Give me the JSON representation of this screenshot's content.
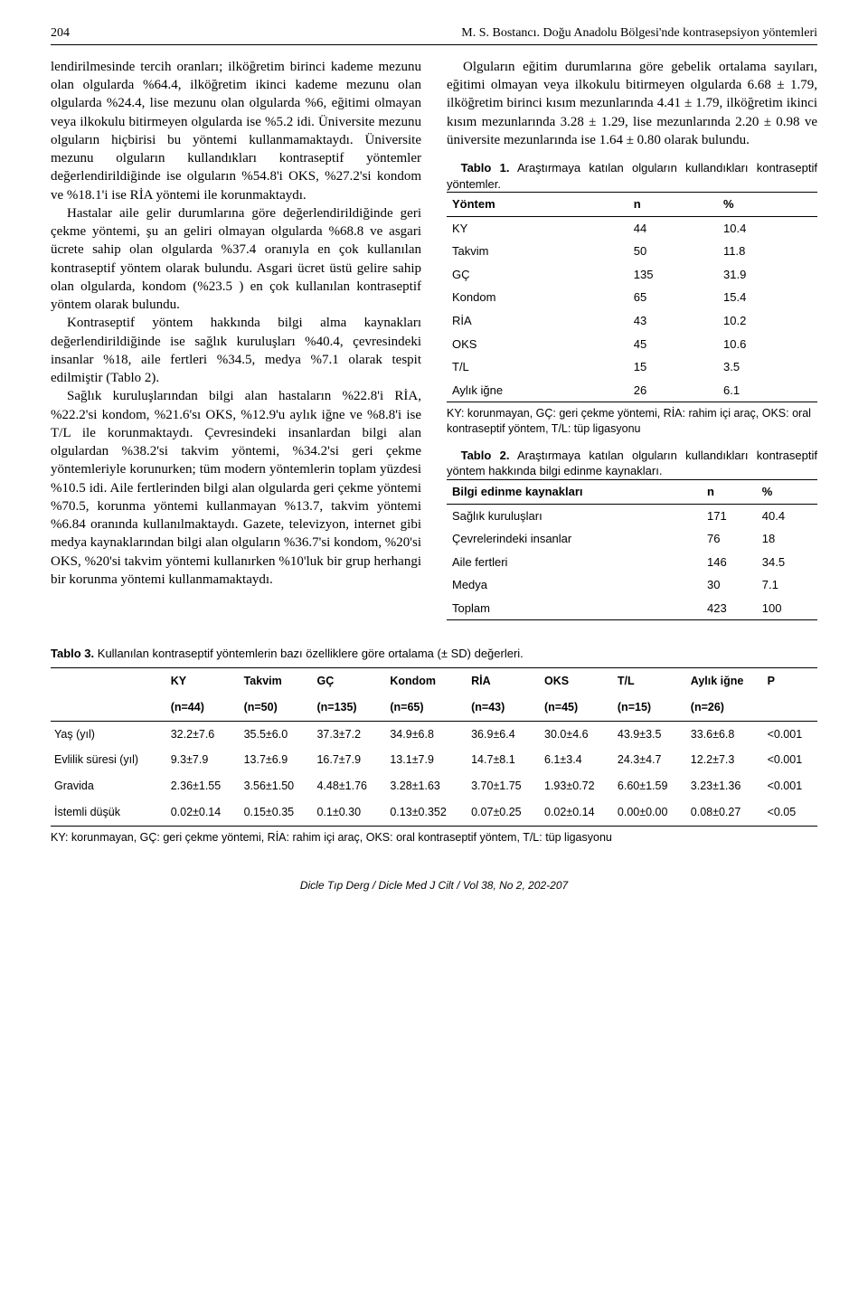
{
  "header": {
    "page_no": "204",
    "running": "M. S. Bostancı. Doğu Anadolu Bölgesi'nde kontrasepsiyon yöntemleri"
  },
  "left": {
    "p1": "lendirilmesinde tercih oranları; ilköğretim birinci kademe mezunu olan olgularda %64.4, ilköğretim ikinci kademe mezunu olan olgularda %24.4, lise mezunu olan olgularda %6, eğitimi olmayan veya ilkokulu bitirmeyen olgularda ise %5.2 idi. Üniversite mezunu olguların hiçbirisi bu yöntemi kullanmamaktaydı. Üniversite mezunu olguların kullandıkları kontraseptif yöntemler değerlendirildiğinde ise olguların %54.8'i OKS, %27.2'si kondom ve %18.1'i ise RİA yöntemi ile korunmaktaydı.",
    "p2": "Hastalar aile gelir durumlarına göre değerlendirildiğinde geri çekme yöntemi, şu an geliri olmayan olgularda %68.8 ve asgari ücrete sahip olan olgularda %37.4 oranıyla en çok kullanılan kontraseptif yöntem olarak bulundu. Asgari ücret üstü gelire sahip olan olgularda, kondom (%23.5 ) en çok kullanılan kontraseptif yöntem olarak bulundu.",
    "p3": "Kontraseptif yöntem hakkında bilgi alma kaynakları değerlendirildiğinde ise sağlık kuruluşları %40.4, çevresindeki insanlar %18, aile fertleri %34.5, medya %7.1 olarak tespit edilmiştir (Tablo 2).",
    "p4": "Sağlık kuruluşlarından bilgi alan hastaların %22.8'i RİA, %22.2'si kondom, %21.6'sı OKS, %12.9'u aylık iğne ve %8.8'i ise T/L ile korunmaktaydı. Çevresindeki insanlardan bilgi alan olgulardan %38.2'si takvim yöntemi, %34.2'si geri çekme yöntemleriyle korunurken; tüm modern yöntemlerin toplam yüzdesi %10.5 idi. Aile fertlerinden bilgi alan olgularda geri çekme yöntemi %70.5, korunma yöntemi kullanmayan %13.7, takvim yöntemi %6.84 oranında kullanılmaktaydı. Gazete, televizyon, internet gibi medya kaynaklarından bilgi alan olguların %36.7'si kondom, %20'si OKS, %20'si takvim yöntemi kullanırken %10'luk bir grup herhangi bir korunma yöntemi kullanmamaktaydı."
  },
  "right": {
    "p1": "Olguların eğitim durumlarına göre gebelik ortalama sayıları, eğitimi olmayan veya ilkokulu bitirmeyen olgularda 6.68 ± 1.79, ilköğretim birinci kısım mezunlarında 4.41 ± 1.79, ilköğretim ikinci kısım mezunlarında 3.28 ± 1.29, lise mezunlarında 2.20 ± 0.98 ve üniversite mezunlarında ise 1.64 ± 0.80 olarak bulundu."
  },
  "table1": {
    "caption_bold": "Tablo 1.",
    "caption_rest": " Araştırmaya katılan olguların kullandıkları kontraseptif yöntemler.",
    "headers": [
      "Yöntem",
      "n",
      "%"
    ],
    "rows": [
      [
        "KY",
        "44",
        "10.4"
      ],
      [
        "Takvim",
        "50",
        "11.8"
      ],
      [
        "GÇ",
        "135",
        "31.9"
      ],
      [
        "Kondom",
        "65",
        "15.4"
      ],
      [
        "RİA",
        "43",
        "10.2"
      ],
      [
        "OKS",
        "45",
        "10.6"
      ],
      [
        "T/L",
        "15",
        "3.5"
      ],
      [
        "Aylık iğne",
        "26",
        "6.1"
      ]
    ],
    "footnote": "KY: korunmayan, GÇ: geri çekme yöntemi, RİA: rahim içi araç, OKS: oral kontraseptif yöntem, T/L: tüp ligasyonu"
  },
  "table2": {
    "caption_bold": "Tablo 2.",
    "caption_rest": " Araştırmaya katılan olguların kullandıkları kontraseptif yöntem hakkında bilgi edinme kaynakları.",
    "headers": [
      "Bilgi edinme kaynakları",
      "n",
      "%"
    ],
    "rows": [
      [
        "Sağlık kuruluşları",
        "171",
        "40.4"
      ],
      [
        "Çevrelerindeki insanlar",
        "76",
        "18"
      ],
      [
        "Aile fertleri",
        "146",
        "34.5"
      ],
      [
        "Medya",
        "30",
        "7.1"
      ],
      [
        "Toplam",
        "423",
        "100"
      ]
    ]
  },
  "table3": {
    "caption_bold": "Tablo 3.",
    "caption_rest": " Kullanılan kontraseptif yöntemlerin bazı özelliklere göre ortalama (± SD) değerleri.",
    "col_headers": [
      {
        "top": "KY",
        "bottom": "(n=44)"
      },
      {
        "top": "Takvim",
        "bottom": "(n=50)"
      },
      {
        "top": "GÇ",
        "bottom": "(n=135)"
      },
      {
        "top": "Kondom",
        "bottom": "(n=65)"
      },
      {
        "top": "RİA",
        "bottom": "(n=43)"
      },
      {
        "top": "OKS",
        "bottom": "(n=45)"
      },
      {
        "top": "T/L",
        "bottom": "(n=15)"
      },
      {
        "top": "Aylık iğne",
        "bottom": "(n=26)"
      },
      {
        "top": "P",
        "bottom": ""
      }
    ],
    "rows": [
      {
        "label": "Yaş (yıl)",
        "cells": [
          "32.2±7.6",
          "35.5±6.0",
          "37.3±7.2",
          "34.9±6.8",
          "36.9±6.4",
          "30.0±4.6",
          "43.9±3.5",
          "33.6±6.8",
          "<0.001"
        ]
      },
      {
        "label": "Evlilik süresi (yıl)",
        "cells": [
          "9.3±7.9",
          "13.7±6.9",
          "16.7±7.9",
          "13.1±7.9",
          "14.7±8.1",
          "6.1±3.4",
          "24.3±4.7",
          "12.2±7.3",
          "<0.001"
        ]
      },
      {
        "label": "Gravida",
        "cells": [
          "2.36±1.55",
          "3.56±1.50",
          "4.48±1.76",
          "3.28±1.63",
          "3.70±1.75",
          "1.93±0.72",
          "6.60±1.59",
          "3.23±1.36",
          "<0.001"
        ]
      },
      {
        "label": "İstemli düşük",
        "cells": [
          "0.02±0.14",
          "0.15±0.35",
          "0.1±0.30",
          "0.13±0.352",
          "0.07±0.25",
          "0.02±0.14",
          "0.00±0.00",
          "0.08±0.27",
          "<0.05"
        ]
      }
    ],
    "footnote": "KY: korunmayan, GÇ: geri çekme yöntemi, RİA: rahim içi araç, OKS: oral kontraseptif yöntem, T/L: tüp ligasyonu"
  },
  "footer": "Dicle Tıp Derg / Dicle Med J Cilt / Vol 38, No 2, 202-207"
}
